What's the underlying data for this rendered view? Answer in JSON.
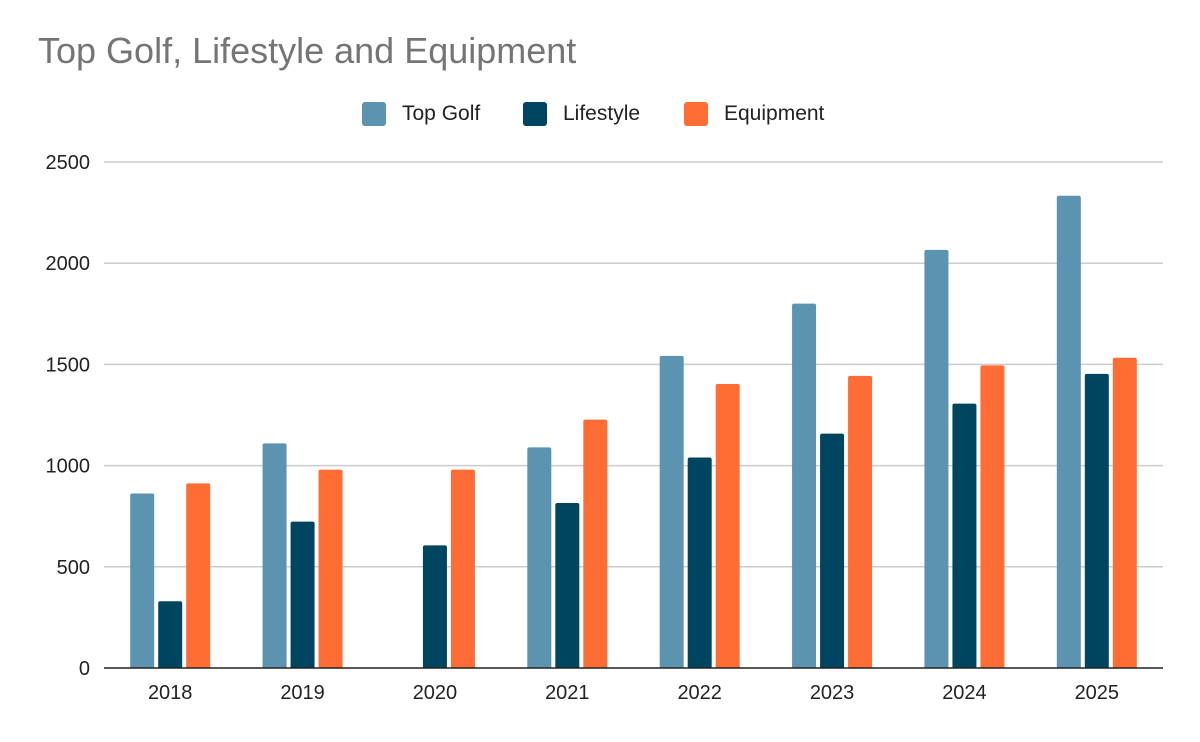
{
  "chart_data": {
    "type": "bar",
    "title": "Top Golf, Lifestyle and Equipment",
    "categories": [
      "2018",
      "2019",
      "2020",
      "2021",
      "2022",
      "2023",
      "2024",
      "2025"
    ],
    "series": [
      {
        "name": "Top Golf",
        "color": "#5b93b1",
        "values": [
          862,
          1110,
          null,
          1090,
          1542,
          1800,
          2066,
          2333
        ]
      },
      {
        "name": "Lifestyle",
        "color": "#00455f",
        "values": [
          330,
          723,
          606,
          815,
          1040,
          1158,
          1306,
          1453
        ]
      },
      {
        "name": "Equipment",
        "color": "#ff6d35",
        "values": [
          912,
          980,
          980,
          1227,
          1403,
          1443,
          1495,
          1533
        ]
      }
    ],
    "yticks": [
      "0",
      "500",
      "1000",
      "1500",
      "2000",
      "2500"
    ],
    "ylim": [
      0,
      2500
    ],
    "xlabel": "",
    "ylabel": "",
    "grid": true,
    "legend_position": "top-center"
  }
}
